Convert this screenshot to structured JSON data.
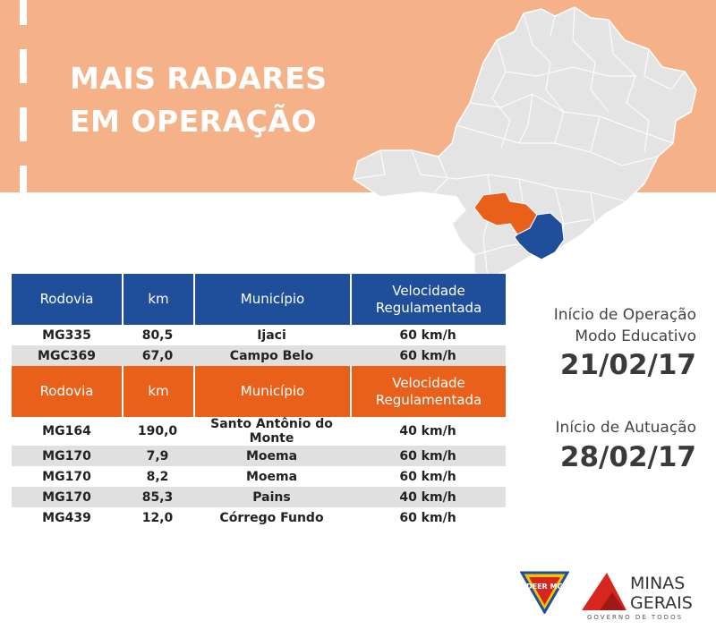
{
  "header": {
    "title_line1": "MAIS RADARES",
    "title_line2": "EM OPERAÇÃO"
  },
  "colors": {
    "banner": "#f5b187",
    "blue": "#1f4e9a",
    "orange": "#e8601a"
  },
  "table_headers": {
    "rodovia": "Rodovia",
    "km": "km",
    "municipio": "Município",
    "velocidade_line1": "Velocidade",
    "velocidade_line2": "Regulamentada"
  },
  "group1": [
    {
      "rodovia": "MG335",
      "km": "80,5",
      "municipio": "Ijaci",
      "velocidade": "60 km/h"
    },
    {
      "rodovia": "MGC369",
      "km": "67,0",
      "municipio": "Campo Belo",
      "velocidade": "60 km/h"
    }
  ],
  "group2": [
    {
      "rodovia": "MG164",
      "km": "190,0",
      "municipio": "Santo Antônio do Monte",
      "velocidade": "40 km/h"
    },
    {
      "rodovia": "MG170",
      "km": "7,9",
      "municipio": "Moema",
      "velocidade": "60 km/h"
    },
    {
      "rodovia": "MG170",
      "km": "8,2",
      "municipio": "Moema",
      "velocidade": "60 km/h"
    },
    {
      "rodovia": "MG170",
      "km": "85,3",
      "municipio": "Pains",
      "velocidade": "40 km/h"
    },
    {
      "rodovia": "MG439",
      "km": "12,0",
      "municipio": "Córrego Fundo",
      "velocidade": "60 km/h"
    }
  ],
  "info": {
    "inicio_operacao_line1": "Início de Operação",
    "inicio_operacao_line2": "Modo Educativo",
    "date_operacao": "21/02/17",
    "inicio_atuacao": "Início de Autuação",
    "date_atuacao": "28/02/17"
  },
  "logos": {
    "deer_text": "DEER MG",
    "mg_line1": "MINAS",
    "mg_line2": "GERAIS",
    "mg_tagline": "GOVERNO DE TODOS"
  }
}
